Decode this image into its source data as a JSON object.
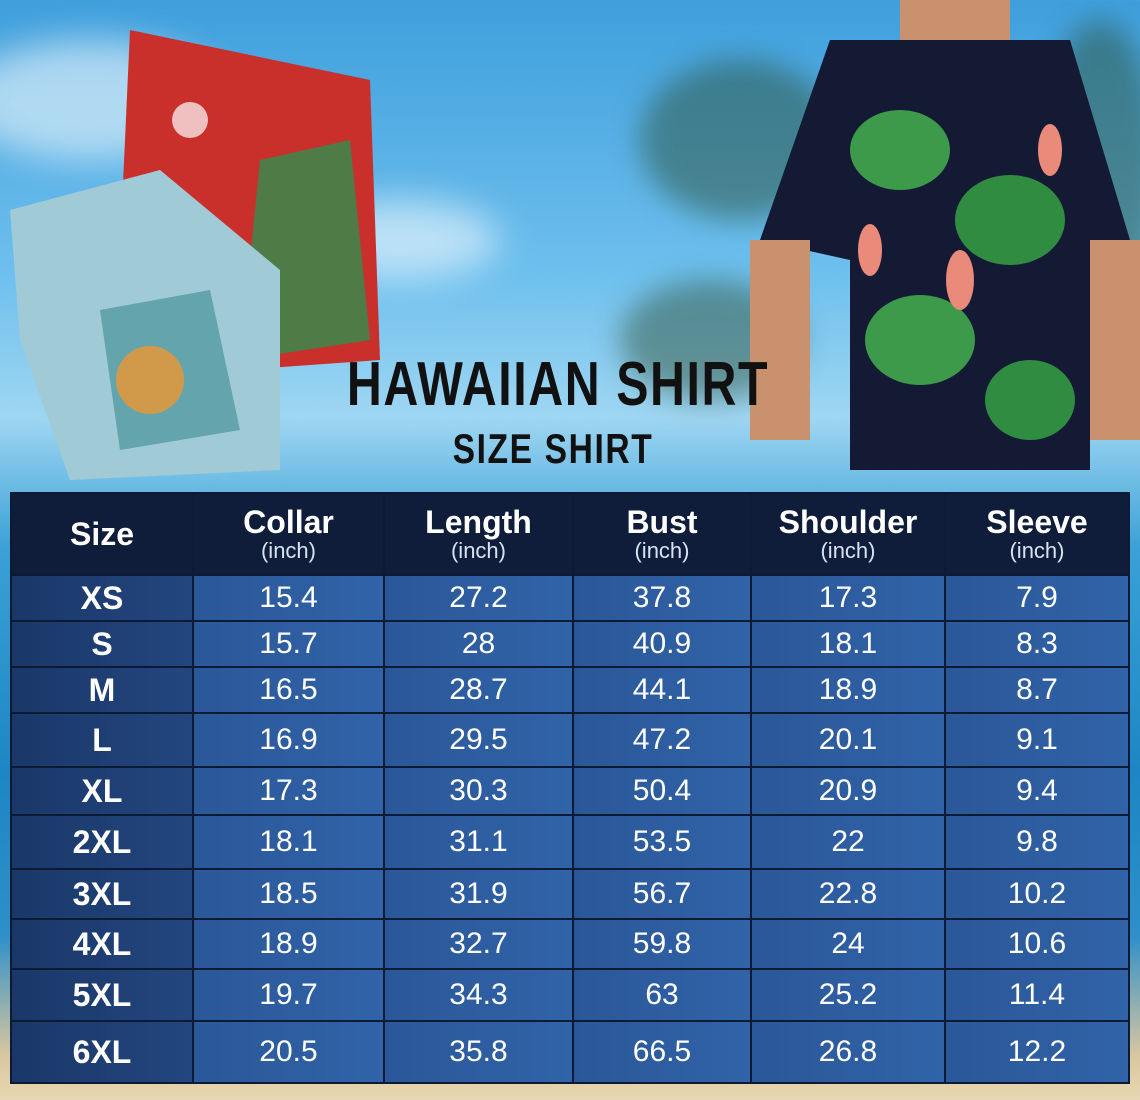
{
  "title": "HAWAIIAN SHIRT",
  "subtitle": "SIZE SHIRT",
  "colors": {
    "header": "#0f1d3a",
    "size_cell": "#1f3f74",
    "value_cell": "#2d5ca0",
    "text": "#ffffff"
  },
  "table": {
    "headers": [
      {
        "label": "Size",
        "unit": ""
      },
      {
        "label": "Collar",
        "unit": "(inch)"
      },
      {
        "label": "Length",
        "unit": "(inch)"
      },
      {
        "label": "Bust",
        "unit": "(inch)"
      },
      {
        "label": "Shoulder",
        "unit": "(inch)"
      },
      {
        "label": "Sleeve",
        "unit": "(inch)"
      }
    ],
    "rows": [
      [
        "XS",
        "15.4",
        "27.2",
        "37.8",
        "17.3",
        "7.9"
      ],
      [
        "S",
        "15.7",
        "28",
        "40.9",
        "18.1",
        "8.3"
      ],
      [
        "M",
        "16.5",
        "28.7",
        "44.1",
        "18.9",
        "8.7"
      ],
      [
        "L",
        "16.9",
        "29.5",
        "47.2",
        "20.1",
        "9.1"
      ],
      [
        "XL",
        "17.3",
        "30.3",
        "50.4",
        "20.9",
        "9.4"
      ],
      [
        "2XL",
        "18.1",
        "31.1",
        "53.5",
        "22",
        "9.8"
      ],
      [
        "3XL",
        "18.5",
        "31.9",
        "56.7",
        "22.8",
        "10.2"
      ],
      [
        "4XL",
        "18.9",
        "32.7",
        "59.8",
        "24",
        "10.6"
      ],
      [
        "5XL",
        "19.7",
        "34.3",
        "63",
        "25.2",
        "11.4"
      ],
      [
        "6XL",
        "20.5",
        "35.8",
        "66.5",
        "26.8",
        "12.2"
      ]
    ]
  }
}
